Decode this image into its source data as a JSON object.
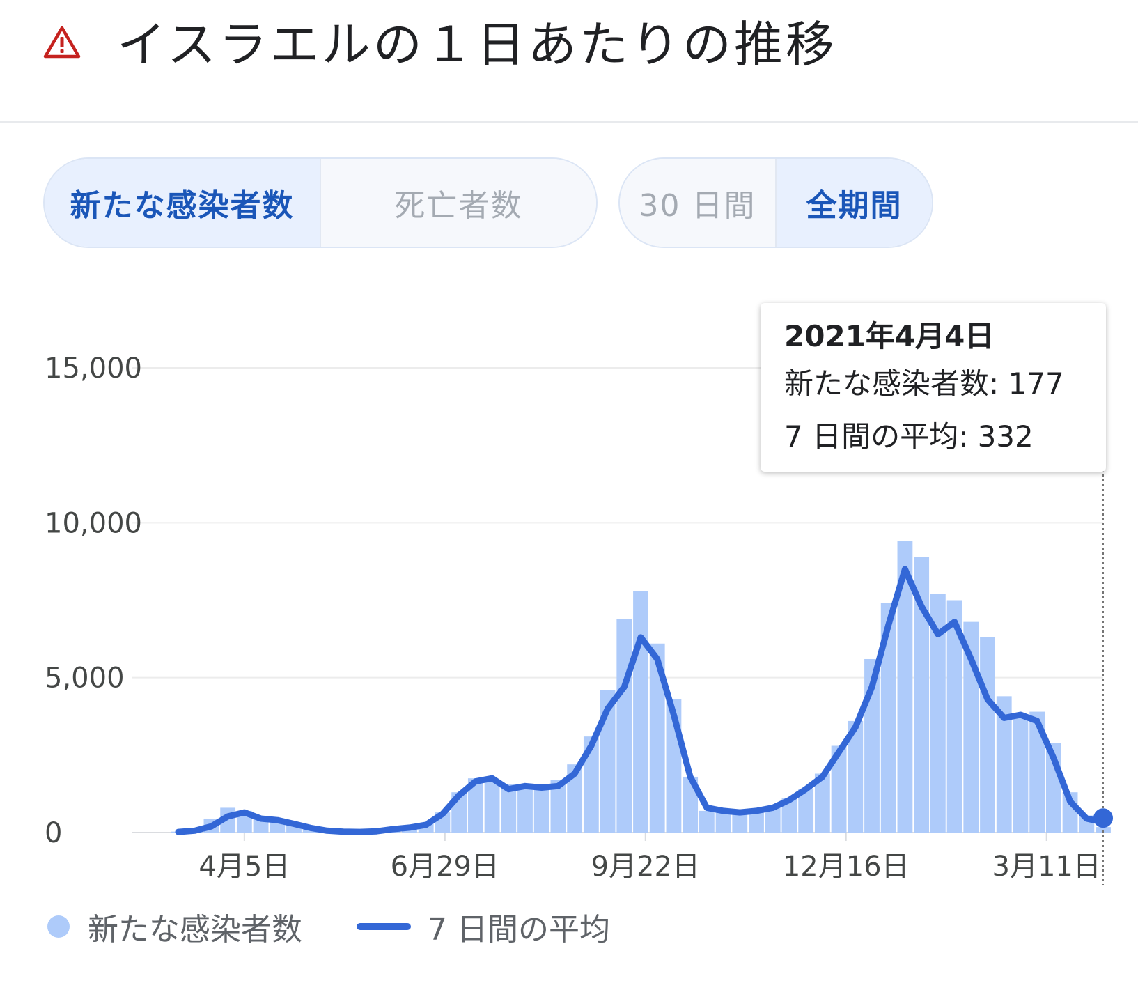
{
  "header": {
    "title": "イスラエルの１日あたりの推移",
    "warning_icon": "warning-triangle-icon"
  },
  "controls": {
    "metric_tabs": [
      {
        "label": "新たな感染者数",
        "selected": true
      },
      {
        "label": "死亡者数",
        "selected": false
      }
    ],
    "period_tabs": [
      {
        "label": "30 日間",
        "selected": false
      },
      {
        "label": "全期間",
        "selected": true
      }
    ]
  },
  "tooltip": {
    "date": "2021年4月4日",
    "cases_line": "新たな感染者数: 177",
    "avg_line": "7 日間の平均: 332"
  },
  "legend": {
    "cases": "新たな感染者数",
    "average": "7 日間の平均"
  },
  "colors": {
    "bars": "#aecbfa",
    "line": "#3367d6",
    "accent": "#1a56b8",
    "warning": "#c5221f"
  },
  "chart_data": {
    "type": "bar",
    "title": "イスラエルの１日あたりの推移",
    "xlabel": "",
    "ylabel": "",
    "ylim": [
      0,
      15000
    ],
    "yticks": [
      0,
      5000,
      10000,
      15000
    ],
    "ytick_labels": [
      "0",
      "5,000",
      "10,000",
      "15,000"
    ],
    "xlim": [
      "2020-03-08",
      "2021-04-04"
    ],
    "x_ticks": [
      {
        "date": "2020-04-05",
        "label": "4月5日"
      },
      {
        "date": "2020-06-29",
        "label": "6月29日"
      },
      {
        "date": "2020-09-22",
        "label": "9月22日"
      },
      {
        "date": "2020-12-16",
        "label": "12月16日"
      },
      {
        "date": "2021-03-11",
        "label": "3月11日"
      }
    ],
    "grid": true,
    "legend_position": "bottom",
    "series": [
      {
        "name": "新たな感染者数",
        "kind": "bar",
        "color": "#aecbfa",
        "x": [
          "2020-03-08",
          "2020-03-15",
          "2020-03-22",
          "2020-03-29",
          "2020-04-05",
          "2020-04-12",
          "2020-04-19",
          "2020-04-26",
          "2020-05-03",
          "2020-05-10",
          "2020-05-17",
          "2020-05-24",
          "2020-05-31",
          "2020-06-07",
          "2020-06-14",
          "2020-06-21",
          "2020-06-28",
          "2020-07-05",
          "2020-07-12",
          "2020-07-19",
          "2020-07-26",
          "2020-08-02",
          "2020-08-09",
          "2020-08-16",
          "2020-08-23",
          "2020-08-30",
          "2020-09-06",
          "2020-09-13",
          "2020-09-20",
          "2020-09-27",
          "2020-10-04",
          "2020-10-11",
          "2020-10-18",
          "2020-10-25",
          "2020-11-01",
          "2020-11-08",
          "2020-11-15",
          "2020-11-22",
          "2020-11-29",
          "2020-12-06",
          "2020-12-13",
          "2020-12-20",
          "2020-12-27",
          "2021-01-03",
          "2021-01-10",
          "2021-01-17",
          "2021-01-24",
          "2021-01-31",
          "2021-02-07",
          "2021-02-14",
          "2021-02-21",
          "2021-02-28",
          "2021-03-07",
          "2021-03-14",
          "2021-03-21",
          "2021-03-28",
          "2021-04-04"
        ],
        "values": [
          30,
          150,
          450,
          800,
          700,
          450,
          380,
          250,
          120,
          60,
          40,
          30,
          60,
          120,
          180,
          300,
          650,
          1300,
          1750,
          1650,
          1550,
          1450,
          1500,
          1700,
          2200,
          3100,
          4600,
          6900,
          7800,
          6100,
          4300,
          1800,
          700,
          650,
          600,
          700,
          850,
          1100,
          1400,
          1900,
          2800,
          3600,
          5600,
          7400,
          9400,
          8900,
          7700,
          7500,
          6800,
          6300,
          4400,
          3700,
          3900,
          2900,
          1300,
          550,
          177
        ]
      },
      {
        "name": "7 日間の平均",
        "kind": "line",
        "color": "#3367d6",
        "x": [
          "2020-03-08",
          "2020-03-15",
          "2020-03-22",
          "2020-03-29",
          "2020-04-05",
          "2020-04-12",
          "2020-04-19",
          "2020-04-26",
          "2020-05-03",
          "2020-05-10",
          "2020-05-17",
          "2020-05-24",
          "2020-05-31",
          "2020-06-07",
          "2020-06-14",
          "2020-06-21",
          "2020-06-28",
          "2020-07-05",
          "2020-07-12",
          "2020-07-19",
          "2020-07-26",
          "2020-08-02",
          "2020-08-09",
          "2020-08-16",
          "2020-08-23",
          "2020-08-30",
          "2020-09-06",
          "2020-09-13",
          "2020-09-20",
          "2020-09-27",
          "2020-10-04",
          "2020-10-11",
          "2020-10-18",
          "2020-10-25",
          "2020-11-01",
          "2020-11-08",
          "2020-11-15",
          "2020-11-22",
          "2020-11-29",
          "2020-12-06",
          "2020-12-13",
          "2020-12-20",
          "2020-12-27",
          "2021-01-03",
          "2021-01-10",
          "2021-01-17",
          "2021-01-24",
          "2021-01-31",
          "2021-02-07",
          "2021-02-14",
          "2021-02-21",
          "2021-02-28",
          "2021-03-07",
          "2021-03-14",
          "2021-03-21",
          "2021-03-28",
          "2021-04-04"
        ],
        "values": [
          20,
          60,
          200,
          520,
          650,
          450,
          400,
          280,
          150,
          60,
          30,
          20,
          40,
          110,
          160,
          250,
          600,
          1200,
          1650,
          1750,
          1400,
          1500,
          1450,
          1500,
          1900,
          2800,
          4000,
          4700,
          6300,
          5600,
          3800,
          1800,
          800,
          700,
          650,
          700,
          800,
          1050,
          1400,
          1800,
          2600,
          3400,
          4700,
          6700,
          8500,
          7300,
          6400,
          6800,
          5600,
          4300,
          3700,
          3800,
          3600,
          2400,
          1000,
          450,
          332
        ]
      }
    ],
    "tooltip": {
      "date": "2021-04-04",
      "new_cases": 177,
      "seven_day_avg": 332
    }
  }
}
